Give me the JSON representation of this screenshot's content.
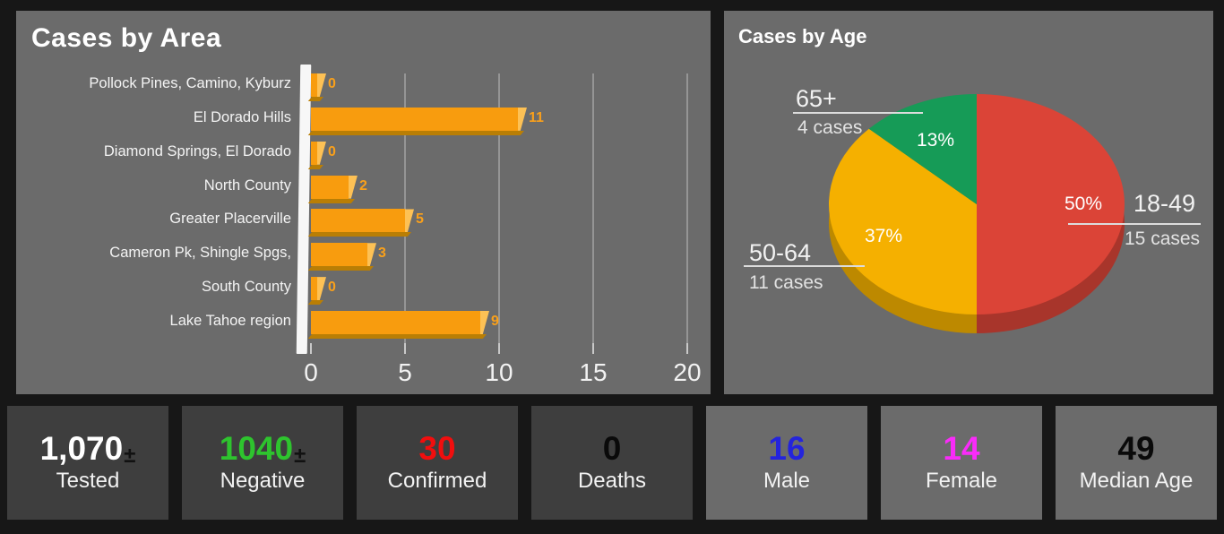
{
  "page": {
    "background": "#171717",
    "panel_background": "#6B6B6B",
    "dark_card_background": "#3E3E3E",
    "light_card_background": "#6B6B6B"
  },
  "chart_data": [
    {
      "type": "bar",
      "orientation": "horizontal",
      "title": "Cases by Area",
      "categories": [
        "Pollock Pines, Camino, Kyburz",
        "El Dorado Hills",
        "Diamond Springs, El Dorado",
        "North County",
        "Greater Placerville",
        "Cameron Pk, Shingle Spgs,",
        "South County",
        "Lake Tahoe region"
      ],
      "values": [
        0,
        11,
        0,
        2,
        5,
        3,
        0,
        9
      ],
      "xlim": [
        0,
        20
      ],
      "x_ticks": [
        0,
        5,
        10,
        15,
        20
      ],
      "grid": true,
      "bar_color": "#F89C0E",
      "bar_highlight_color": "#FDC155",
      "bar_shadow_color": "#B97E05",
      "value_label_color": "#F9A01B"
    },
    {
      "type": "pie",
      "title": "Cases by Age",
      "effect": "3d",
      "slices": [
        {
          "label": "18-49",
          "cases_text": "15 cases",
          "percent": 50,
          "percent_label": "50%",
          "color": "#DB4437",
          "depth_color": "#A8352B"
        },
        {
          "label": "50-64",
          "cases_text": "11 cases",
          "percent": 37,
          "percent_label": "37%",
          "color": "#F5B000",
          "depth_color": "#BD8900"
        },
        {
          "label": "65+",
          "cases_text": "4 cases",
          "percent": 13,
          "percent_label": "13%",
          "color": "#169B57",
          "depth_color": "#0F7040"
        }
      ]
    }
  ],
  "stats": [
    {
      "label": "Tested",
      "value": "1,070",
      "suffix": "±",
      "value_color": "#FFFFFF",
      "bg": "#3E3E3E"
    },
    {
      "label": "Negative",
      "value": "1040",
      "suffix": "±",
      "value_color": "#2EC42E",
      "bg": "#3E3E3E"
    },
    {
      "label": "Confirmed",
      "value": "30",
      "suffix": "",
      "value_color": "#F10E0E",
      "bg": "#3E3E3E"
    },
    {
      "label": "Deaths",
      "value": "0",
      "suffix": "",
      "value_color": "#0A0A0A",
      "bg": "#3E3E3E"
    },
    {
      "label": "Male",
      "value": "16",
      "suffix": "",
      "value_color": "#2424DC",
      "bg": "#6B6B6B"
    },
    {
      "label": "Female",
      "value": "14",
      "suffix": "",
      "value_color": "#F92BF9",
      "bg": "#6B6B6B"
    },
    {
      "label": "Median Age",
      "value": "49",
      "suffix": "",
      "value_color": "#0A0A0A",
      "bg": "#6B6B6B"
    }
  ]
}
